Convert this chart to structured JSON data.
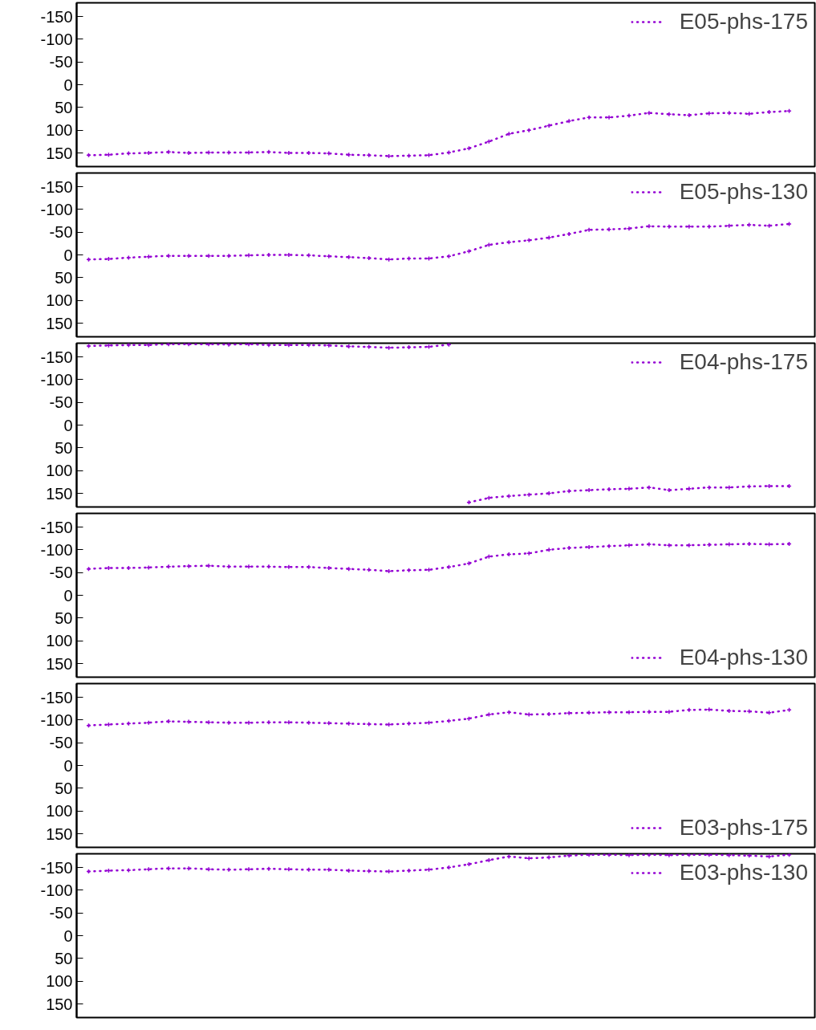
{
  "chart_data": [
    {
      "type": "line",
      "categories": [
        null,
        null,
        null,
        null,
        null,
        null,
        null,
        null,
        null,
        null,
        null,
        null,
        null,
        null,
        null,
        null,
        null,
        null,
        null,
        null,
        null,
        null,
        null,
        null,
        null,
        null,
        null,
        null,
        null,
        null,
        null,
        null,
        null,
        null,
        null,
        null
      ],
      "ylim": [
        180,
        -180
      ],
      "yticks": [
        -150,
        -100,
        -50,
        0,
        50,
        100,
        150
      ],
      "tick_labels": "y",
      "grid": false,
      "legend": "top right",
      "line_style": "dotted",
      "marker": "cross",
      "series": [
        {
          "name": "E05-phs-175",
          "color": "#9400d3",
          "values": [
            155,
            154,
            151,
            150,
            148,
            150,
            149,
            149,
            149,
            148,
            150,
            150,
            151,
            154,
            155,
            157,
            156,
            155,
            149,
            140,
            125,
            108,
            100,
            90,
            80,
            72,
            72,
            68,
            62,
            65,
            67,
            63,
            62,
            64,
            60,
            58
          ]
        }
      ]
    },
    {
      "type": "line",
      "categories": [
        null,
        null,
        null,
        null,
        null,
        null,
        null,
        null,
        null,
        null,
        null,
        null,
        null,
        null,
        null,
        null,
        null,
        null,
        null,
        null,
        null,
        null,
        null,
        null,
        null,
        null,
        null,
        null,
        null,
        null,
        null,
        null,
        null,
        null,
        null,
        null
      ],
      "ylim": [
        180,
        -180
      ],
      "yticks": [
        -150,
        -100,
        -50,
        0,
        50,
        100,
        150
      ],
      "tick_labels": "y",
      "grid": false,
      "legend": "top right",
      "line_style": "dotted",
      "marker": "cross",
      "series": [
        {
          "name": "E05-phs-130",
          "color": "#9400d3",
          "values": [
            10,
            9,
            6,
            4,
            2,
            2,
            2,
            2,
            1,
            0,
            0,
            1,
            3,
            5,
            7,
            10,
            8,
            8,
            3,
            -8,
            -22,
            -28,
            -32,
            -38,
            -46,
            -55,
            -56,
            -58,
            -63,
            -62,
            -62,
            -62,
            -64,
            -66,
            -64,
            -68
          ]
        }
      ]
    },
    {
      "type": "line",
      "categories": [
        null,
        null,
        null,
        null,
        null,
        null,
        null,
        null,
        null,
        null,
        null,
        null,
        null,
        null,
        null,
        null,
        null,
        null,
        null,
        null,
        null,
        null,
        null,
        null,
        null,
        null,
        null,
        null,
        null,
        null,
        null,
        null,
        null,
        null,
        null,
        null
      ],
      "ylim": [
        180,
        -180
      ],
      "yticks": [
        -150,
        -100,
        -50,
        0,
        50,
        100,
        150
      ],
      "tick_labels": "y",
      "grid": false,
      "legend": "top right",
      "line_style": "dotted",
      "marker": "cross",
      "series": [
        {
          "name": "E04-phs-175",
          "color": "#9400d3",
          "values": [
            -174,
            -175,
            -176,
            -176,
            -178,
            -178,
            -178,
            -177,
            -178,
            -176,
            -176,
            -176,
            -175,
            -173,
            -172,
            -170,
            -171,
            -172,
            -177,
            null,
            null,
            null,
            null,
            null,
            null,
            null,
            null,
            null,
            null,
            null,
            null,
            null,
            null,
            null,
            null,
            null
          ]
        },
        {
          "color": "#9400d3",
          "values": [
            null,
            null,
            null,
            null,
            null,
            null,
            null,
            null,
            null,
            null,
            null,
            null,
            null,
            null,
            null,
            null,
            null,
            null,
            null,
            170,
            160,
            156,
            153,
            150,
            145,
            143,
            141,
            140,
            137,
            143,
            140,
            137,
            137,
            135,
            134,
            134
          ]
        }
      ]
    },
    {
      "type": "line",
      "categories": [
        null,
        null,
        null,
        null,
        null,
        null,
        null,
        null,
        null,
        null,
        null,
        null,
        null,
        null,
        null,
        null,
        null,
        null,
        null,
        null,
        null,
        null,
        null,
        null,
        null,
        null,
        null,
        null,
        null,
        null,
        null,
        null,
        null,
        null,
        null,
        null
      ],
      "ylim": [
        180,
        -180
      ],
      "yticks": [
        -150,
        -100,
        -50,
        0,
        50,
        100,
        150
      ],
      "tick_labels": "y",
      "grid": false,
      "legend": "bottom right",
      "line_style": "dotted",
      "marker": "cross",
      "series": [
        {
          "name": "E04-phs-130",
          "color": "#9400d3",
          "values": [
            -58,
            -60,
            -60,
            -61,
            -63,
            -64,
            -65,
            -63,
            -63,
            -63,
            -62,
            -62,
            -60,
            -58,
            -56,
            -53,
            -55,
            -56,
            -62,
            -70,
            -85,
            -90,
            -92,
            -100,
            -104,
            -106,
            -108,
            -110,
            -112,
            -110,
            -110,
            -111,
            -112,
            -113,
            -112,
            -113
          ]
        }
      ]
    },
    {
      "type": "line",
      "categories": [
        null,
        null,
        null,
        null,
        null,
        null,
        null,
        null,
        null,
        null,
        null,
        null,
        null,
        null,
        null,
        null,
        null,
        null,
        null,
        null,
        null,
        null,
        null,
        null,
        null,
        null,
        null,
        null,
        null,
        null,
        null,
        null,
        null,
        null,
        null,
        null
      ],
      "ylim": [
        180,
        -180
      ],
      "yticks": [
        -150,
        -100,
        -50,
        0,
        50,
        100,
        150
      ],
      "tick_labels": "y",
      "grid": false,
      "legend": "bottom right",
      "line_style": "dotted",
      "marker": "cross",
      "series": [
        {
          "name": "E03-phs-175",
          "color": "#9400d3",
          "values": [
            -88,
            -90,
            -92,
            -94,
            -97,
            -96,
            -95,
            -94,
            -94,
            -95,
            -95,
            -94,
            -93,
            -92,
            -91,
            -90,
            -92,
            -94,
            -98,
            -103,
            -112,
            -117,
            -112,
            -113,
            -115,
            -116,
            -117,
            -117,
            -118,
            -118,
            -122,
            -123,
            -120,
            -119,
            -116,
            -122
          ]
        }
      ]
    },
    {
      "type": "line",
      "categories": [
        null,
        null,
        null,
        null,
        null,
        null,
        null,
        null,
        null,
        null,
        null,
        null,
        null,
        null,
        null,
        null,
        null,
        null,
        null,
        null,
        null,
        null,
        null,
        null,
        null,
        null,
        null,
        null,
        null,
        null,
        null,
        null,
        null,
        null,
        null,
        null
      ],
      "ylim": [
        180,
        -180
      ],
      "yticks": [
        -150,
        -100,
        -50,
        0,
        50,
        100,
        150
      ],
      "tick_labels": "y",
      "grid": false,
      "legend": "top right",
      "line_style": "dotted",
      "marker": "cross",
      "series": [
        {
          "name": "E03-phs-130",
          "color": "#9400d3",
          "values": [
            -141,
            -143,
            -144,
            -146,
            -148,
            -148,
            -146,
            -145,
            -146,
            -147,
            -146,
            -145,
            -145,
            -143,
            -142,
            -141,
            -143,
            -145,
            -150,
            -157,
            -166,
            -174,
            -170,
            -172,
            -176,
            -178,
            -178,
            -177,
            -178,
            -177,
            -178,
            -178,
            -177,
            -176,
            -174,
            -178
          ]
        }
      ]
    }
  ]
}
